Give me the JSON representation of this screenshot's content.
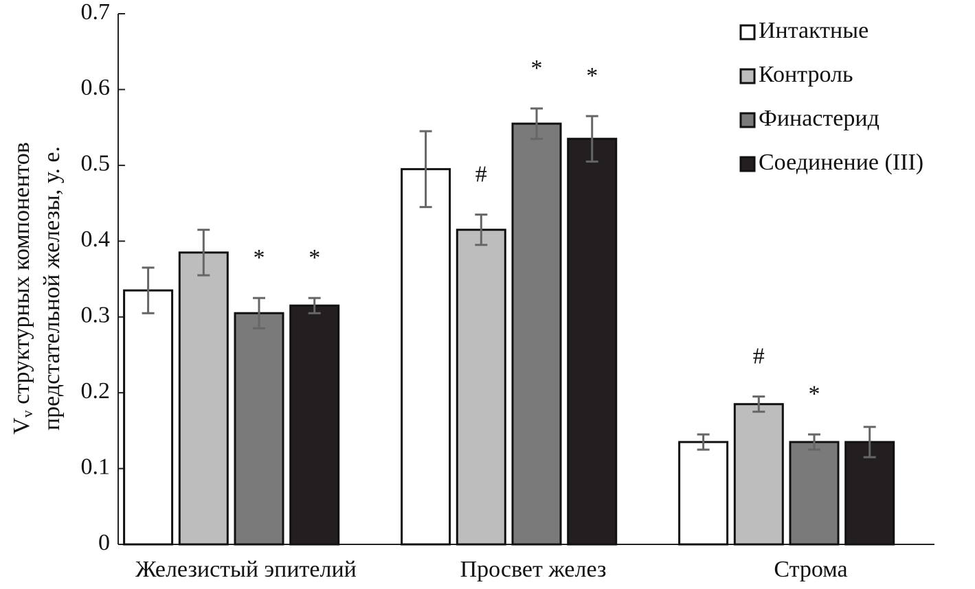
{
  "chart_data": {
    "type": "bar",
    "ylabel_symbol": "V",
    "ylabel_subscript": "v",
    "ylabel_lines": [
      "структурных компонентов",
      "предстательной железы, у. е."
    ],
    "categories": [
      "Железистый эпителий",
      "Просвет желез",
      "Строма"
    ],
    "ylim": [
      0,
      0.7
    ],
    "yticks": [
      0,
      0.1,
      0.2,
      0.3,
      0.4,
      0.5,
      0.6,
      0.7
    ],
    "legend": "top-right",
    "series": [
      {
        "name": "Интактные",
        "color": "#ffffff",
        "values": [
          0.335,
          0.495,
          0.135
        ],
        "errors": [
          0.03,
          0.05,
          0.01
        ]
      },
      {
        "name": "Контроль",
        "color": "#bdbdbd",
        "values": [
          0.385,
          0.415,
          0.185
        ],
        "errors": [
          0.03,
          0.02,
          0.01
        ],
        "annotations": [
          null,
          "#",
          "#"
        ]
      },
      {
        "name": "Финастерид",
        "color": "#7a7a7a",
        "values": [
          0.305,
          0.555,
          0.135
        ],
        "errors": [
          0.02,
          0.02,
          0.01
        ],
        "annotations": [
          "*",
          "*",
          "*"
        ]
      },
      {
        "name": "Соединение (III)",
        "color": "#231f20",
        "values": [
          0.315,
          0.535,
          0.135
        ],
        "errors": [
          0.01,
          0.03,
          0.02
        ],
        "annotations": [
          "*",
          "*",
          null
        ]
      }
    ]
  }
}
